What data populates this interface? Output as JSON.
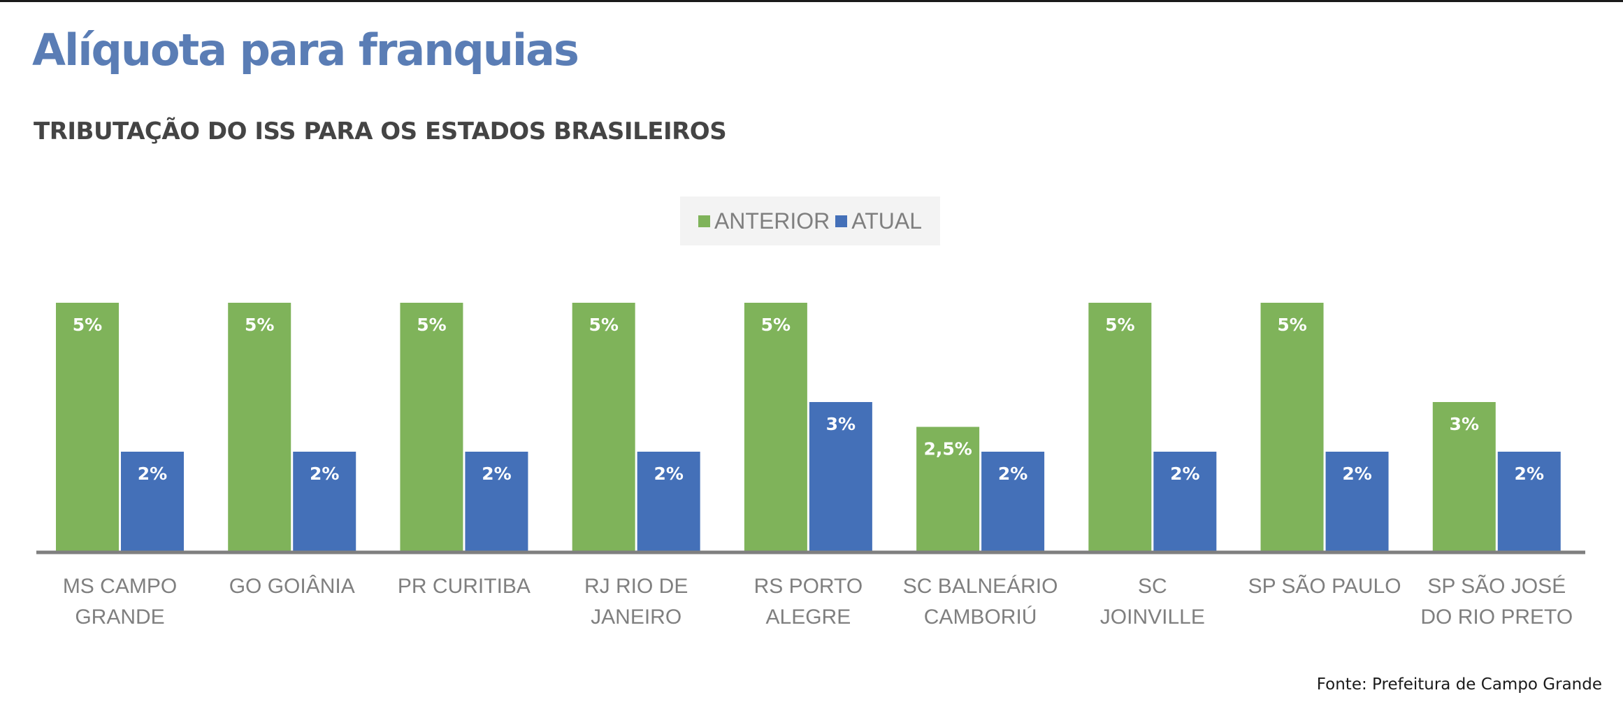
{
  "title": "Alíquota para franquias",
  "subtitle": "TRIBUTAÇÃO DO ISS PARA OS ESTADOS BRASILEIROS",
  "source": "Fonte: Prefeitura de Campo Grande",
  "legend": {
    "anterior": "ANTERIOR",
    "atual": "ATUAL"
  },
  "colors": {
    "anterior": "#7fb35a",
    "atual": "#4470b8",
    "axis": "#7f7f7f"
  },
  "chart_data": {
    "type": "bar",
    "title": "TRIBUTAÇÃO DO ISS PARA OS ESTADOS BRASILEIROS",
    "xlabel": "",
    "ylabel": "",
    "ylim": [
      0,
      5
    ],
    "grid": false,
    "legend_position": "top-center",
    "categories": [
      [
        "MS CAMPO",
        "GRANDE"
      ],
      [
        "GO GOIÂNIA"
      ],
      [
        "PR CURITIBA"
      ],
      [
        "RJ RIO DE",
        "JANEIRO"
      ],
      [
        "RS PORTO",
        "ALEGRE"
      ],
      [
        "SC BALNEÁRIO",
        "CAMBORIÚ"
      ],
      [
        "SC",
        "JOINVILLE"
      ],
      [
        "SP SÃO PAULO"
      ],
      [
        "SP SÃO JOSÉ",
        "DO RIO PRETO"
      ]
    ],
    "series": [
      {
        "name": "ANTERIOR",
        "values": [
          5,
          5,
          5,
          5,
          5,
          2.5,
          5,
          5,
          3
        ],
        "labels": [
          "5%",
          "5%",
          "5%",
          "5%",
          "5%",
          "2,5%",
          "5%",
          "5%",
          "3%"
        ]
      },
      {
        "name": "ATUAL",
        "values": [
          2,
          2,
          2,
          2,
          3,
          2,
          2,
          2,
          2
        ],
        "labels": [
          "2%",
          "2%",
          "2%",
          "2%",
          "3%",
          "2%",
          "2%",
          "2%",
          "2%"
        ]
      }
    ]
  }
}
